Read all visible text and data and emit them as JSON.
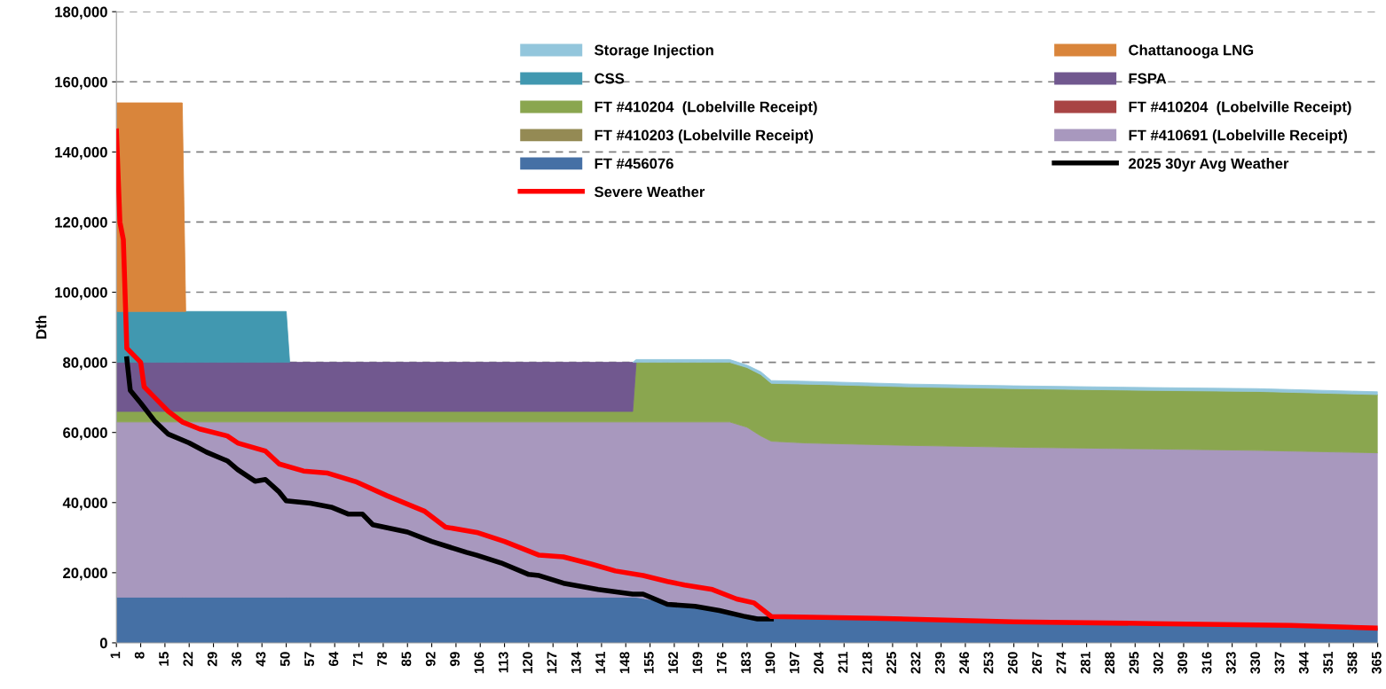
{
  "chart_data": {
    "type": "area",
    "stacked": true,
    "ylabel": "Dth",
    "x": [
      1,
      20,
      21,
      50,
      51,
      150,
      151,
      160,
      170,
      178,
      183,
      187,
      190,
      200,
      230,
      260,
      300,
      330,
      365
    ],
    "xlim": [
      1,
      365
    ],
    "xticks": [
      1,
      8,
      15,
      22,
      29,
      36,
      43,
      50,
      57,
      64,
      71,
      78,
      85,
      92,
      99,
      106,
      113,
      120,
      127,
      134,
      141,
      148,
      155,
      162,
      169,
      176,
      183,
      190,
      197,
      204,
      211,
      218,
      225,
      232,
      239,
      246,
      253,
      260,
      267,
      274,
      281,
      288,
      295,
      302,
      309,
      316,
      323,
      330,
      337,
      344,
      351,
      358,
      365
    ],
    "ylim": [
      0,
      180000
    ],
    "yticks": [
      {
        "value": 0,
        "label": "0"
      },
      {
        "value": 20000,
        "label": "20,000"
      },
      {
        "value": 40000,
        "label": "40,000"
      },
      {
        "value": 60000,
        "label": "60,000"
      },
      {
        "value": 80000,
        "label": "80,000"
      },
      {
        "value": 100000,
        "label": "100,000"
      },
      {
        "value": 120000,
        "label": "120,000"
      },
      {
        "value": 140000,
        "label": "140,000"
      },
      {
        "value": 160000,
        "label": "160,000"
      },
      {
        "value": 180000,
        "label": "180,000"
      }
    ],
    "grid": "y",
    "legend": "top right",
    "series": [
      {
        "name": "FT #456076",
        "color": "#4570a5",
        "values": [
          13000,
          13000,
          13000,
          13000,
          13000,
          13000,
          13000,
          11500,
          10000,
          8800,
          8000,
          7600,
          7400,
          7200,
          6300,
          5800,
          5200,
          4900,
          4200
        ]
      },
      {
        "name": "FT #410691 (Lobelville Receipt)",
        "color": "#a898be",
        "values": [
          50000,
          50000,
          50000,
          50000,
          50000,
          50000,
          50000,
          51500,
          53000,
          54200,
          53500,
          51400,
          50100,
          49800,
          50000,
          50000,
          50100,
          50000,
          50000
        ]
      },
      {
        "name": "FT #410203 (Lobelville Receipt)",
        "color": "#948a54",
        "values": [
          null,
          null,
          null,
          null,
          null,
          null,
          null,
          null,
          null,
          null,
          null,
          null,
          null,
          null,
          null,
          null,
          null,
          null,
          null
        ]
      },
      {
        "name": "FT #410204  (Lobelville Receipt)",
        "color": "#a84444",
        "values": [
          null,
          null,
          null,
          null,
          null,
          null,
          null,
          null,
          null,
          null,
          null,
          null,
          null,
          null,
          null,
          null,
          null,
          null,
          null
        ]
      },
      {
        "name": "FT #410204  (Lobelville Receipt)",
        "color": "#8aa64f",
        "values": [
          3000,
          3000,
          3000,
          3000,
          3000,
          3000,
          17000,
          17000,
          17000,
          17000,
          17000,
          17500,
          16500,
          16800,
          16700,
          16700,
          16700,
          16800,
          16600
        ]
      },
      {
        "name": "FSPA",
        "color": "#71588f",
        "values": [
          14000,
          14000,
          14000,
          14000,
          14000,
          14000,
          null,
          null,
          null,
          null,
          null,
          null,
          null,
          null,
          null,
          null,
          null,
          null,
          null
        ]
      },
      {
        "name": "CSS",
        "color": "#4198b0",
        "values": [
          14500,
          14500,
          14500,
          14500,
          null,
          null,
          null,
          null,
          null,
          null,
          null,
          null,
          null,
          null,
          null,
          null,
          null,
          null,
          null
        ]
      },
      {
        "name": "Chattanooga LNG",
        "color": "#d9853b",
        "values": [
          59500,
          59500,
          null,
          null,
          null,
          null,
          null,
          null,
          null,
          null,
          null,
          null,
          null,
          null,
          null,
          null,
          null,
          null,
          null
        ]
      },
      {
        "name": "Storage Injection",
        "color": "#93c6dc",
        "values": [
          null,
          null,
          null,
          null,
          null,
          null,
          800,
          800,
          800,
          800,
          700,
          800,
          800,
          800,
          800,
          800,
          800,
          800,
          800
        ]
      },
      {
        "name": "2025 30yr Avg Weather",
        "type": "line",
        "color": "#000000",
        "x": [
          4,
          5,
          8,
          12,
          16,
          22,
          27,
          33,
          36,
          41,
          44,
          48,
          50,
          57,
          63,
          68,
          72,
          75,
          85,
          92,
          102,
          105,
          112,
          120,
          123,
          130,
          140,
          150,
          153,
          160,
          168,
          175,
          182,
          186,
          190
        ],
        "values": [
          81000,
          72000,
          68400,
          63300,
          59500,
          57000,
          54400,
          51900,
          49400,
          46100,
          46600,
          43000,
          40500,
          39800,
          38700,
          36700,
          36700,
          33700,
          31600,
          28900,
          25800,
          25000,
          22800,
          19500,
          19200,
          17000,
          15200,
          13900,
          13900,
          11000,
          10400,
          9200,
          7600,
          6800,
          6800
        ]
      },
      {
        "name": "Severe Weather",
        "type": "line",
        "color": "#ff0000",
        "x": [
          1,
          2,
          3,
          4,
          7,
          8,
          9,
          12,
          16,
          20,
          25,
          33,
          36,
          44,
          48,
          55,
          62,
          70,
          79,
          90,
          96,
          105,
          113,
          123,
          130,
          138,
          145,
          153,
          160,
          165,
          173,
          180,
          185,
          190,
          220,
          260,
          300,
          340,
          365
        ],
        "values": [
          146000,
          120000,
          115000,
          84000,
          81000,
          80000,
          73000,
          70000,
          66000,
          63000,
          61000,
          59000,
          57000,
          54700,
          51000,
          49000,
          48400,
          46000,
          42000,
          37500,
          33000,
          31500,
          28900,
          25000,
          24500,
          22500,
          20500,
          19200,
          17500,
          16500,
          15200,
          12500,
          11400,
          7500,
          7000,
          6000,
          5500,
          5000,
          4200
        ]
      }
    ]
  }
}
